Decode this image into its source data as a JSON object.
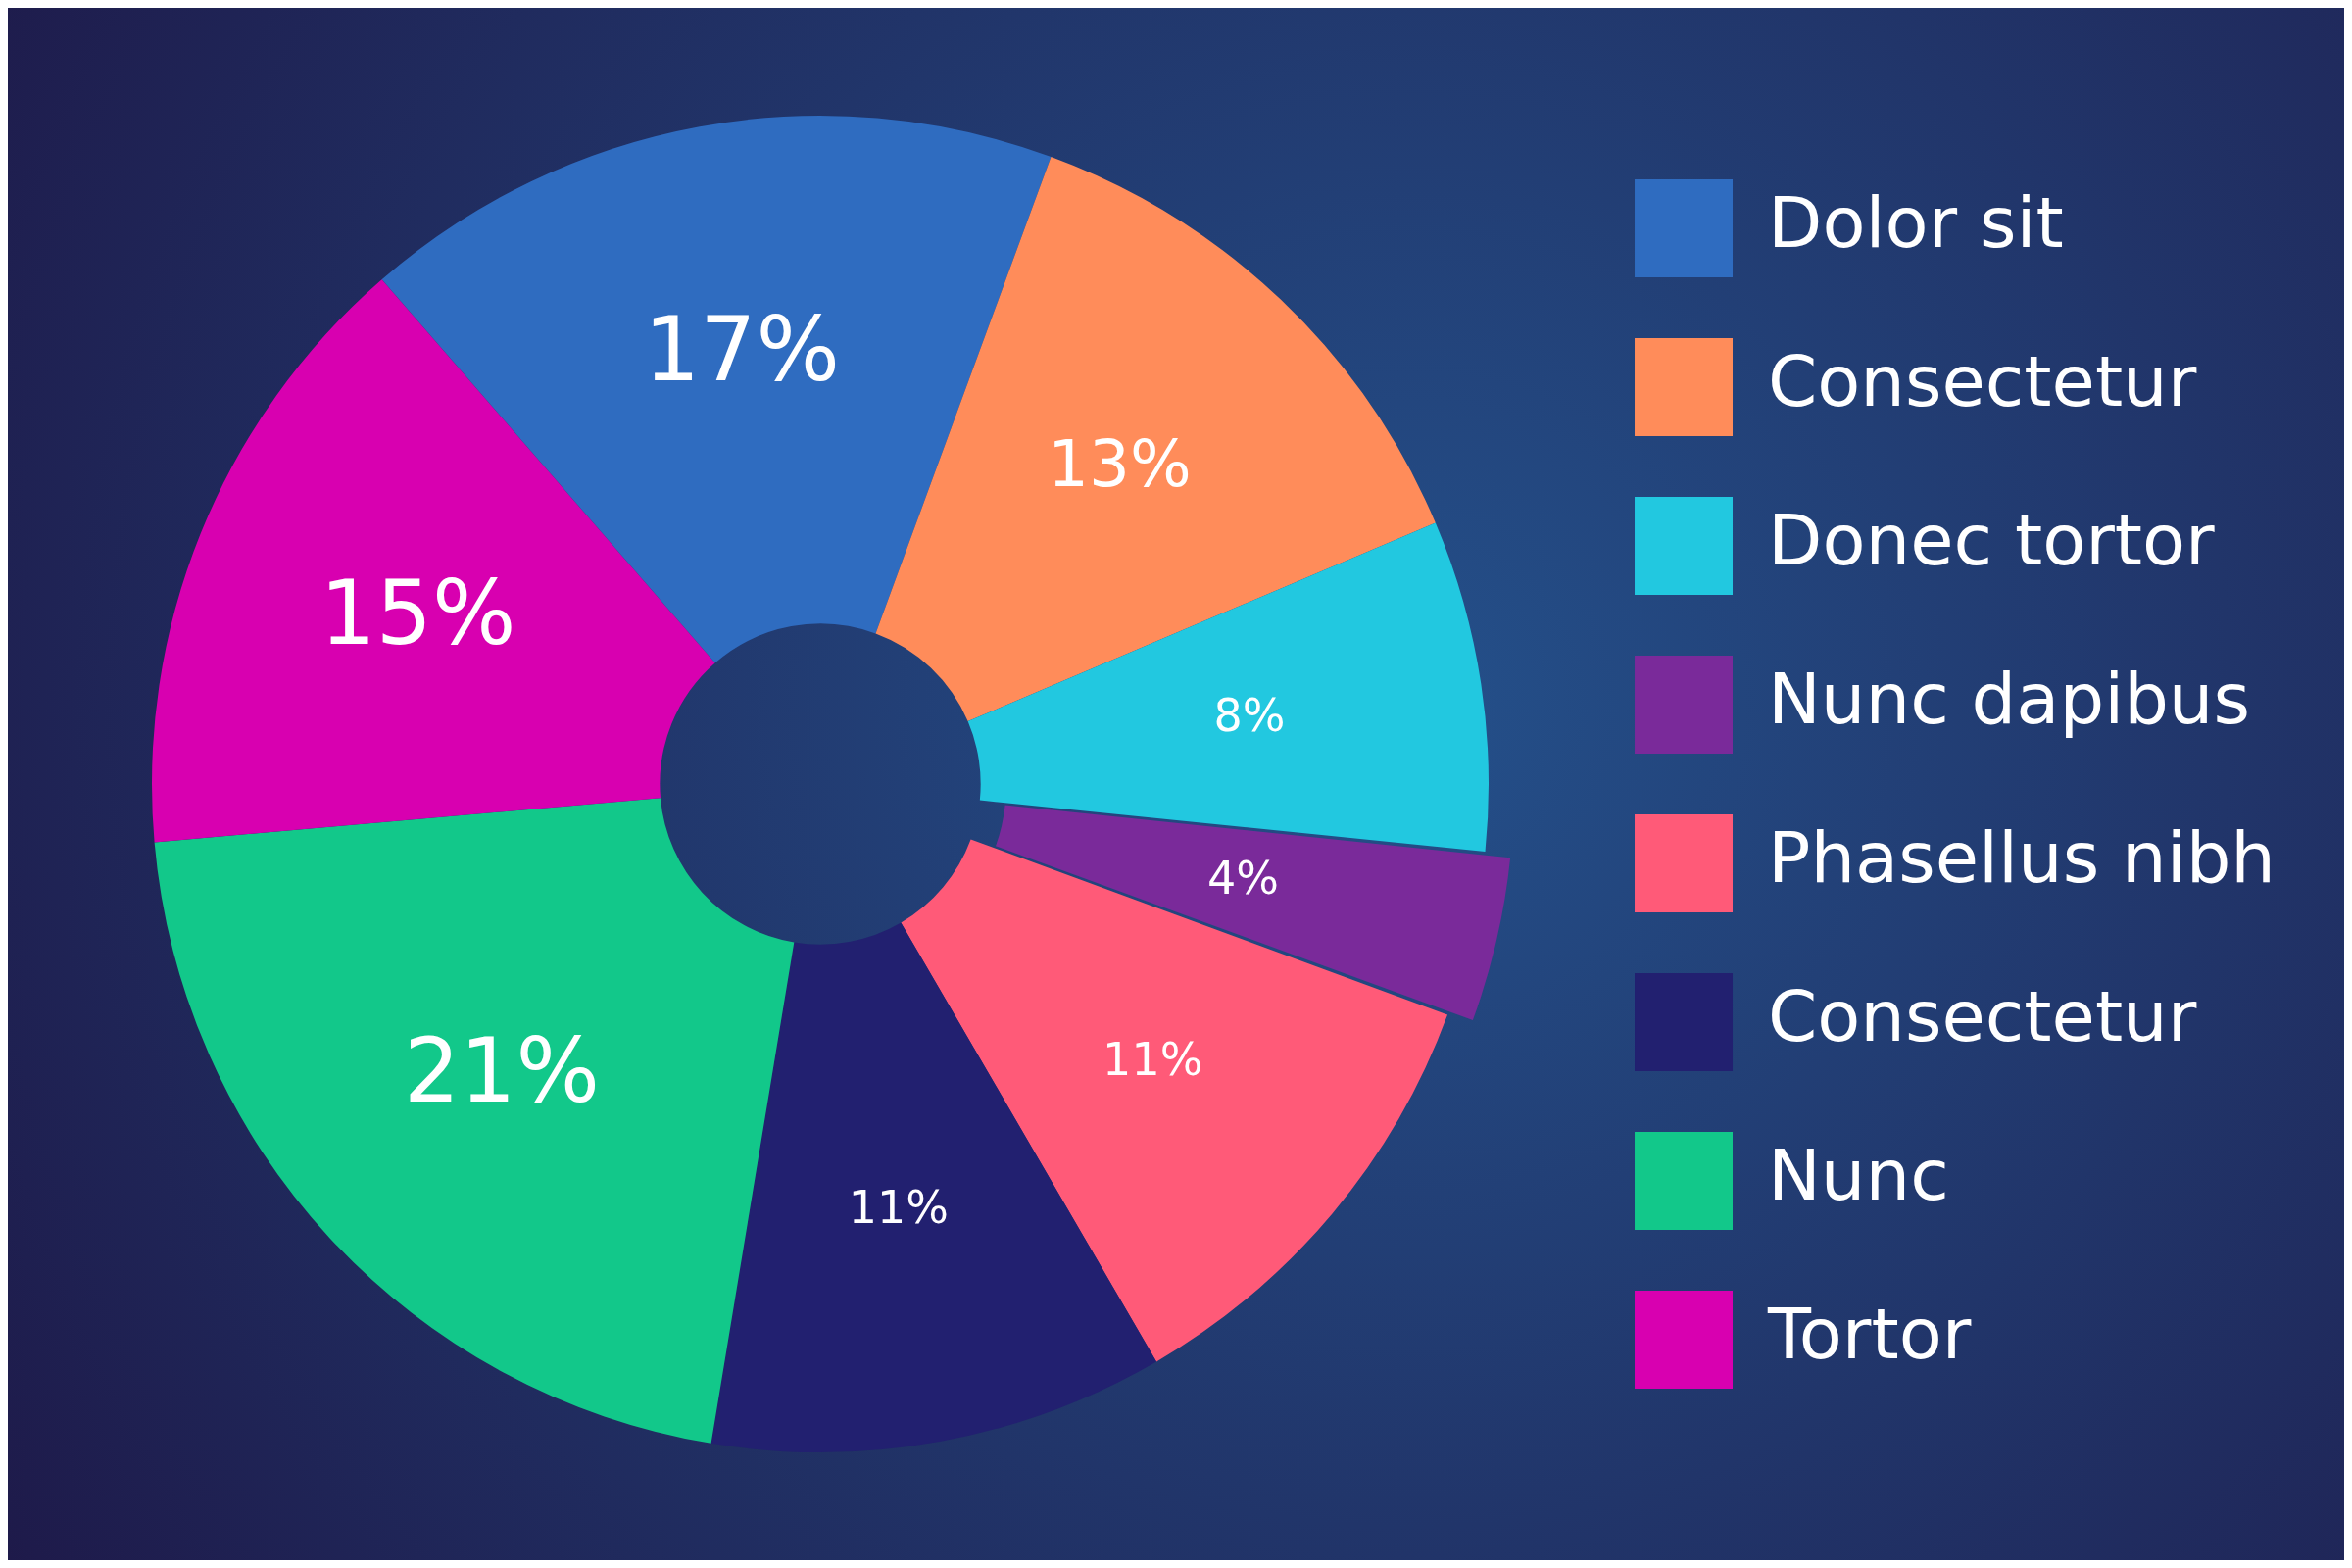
{
  "chart_data": {
    "type": "donut",
    "categories": [
      "Dolor sit",
      "Consectetur",
      "Donec tortor",
      "Nunc dapibus",
      "Phasellus nibh",
      "Consectetur",
      "Nunc",
      "Tortor"
    ],
    "values": [
      17,
      13,
      8,
      4,
      11,
      11,
      21,
      15
    ],
    "value_labels": [
      "17%",
      "13%",
      "8%",
      "4%",
      "11%",
      "11%",
      "21%",
      "15%"
    ],
    "colors": [
      "#2f6cc0",
      "#ff8c5a",
      "#22c8e0",
      "#7a2a9a",
      "#ff5a78",
      "#222070",
      "#12c88a",
      "#d800b0"
    ],
    "legend": "right"
  }
}
